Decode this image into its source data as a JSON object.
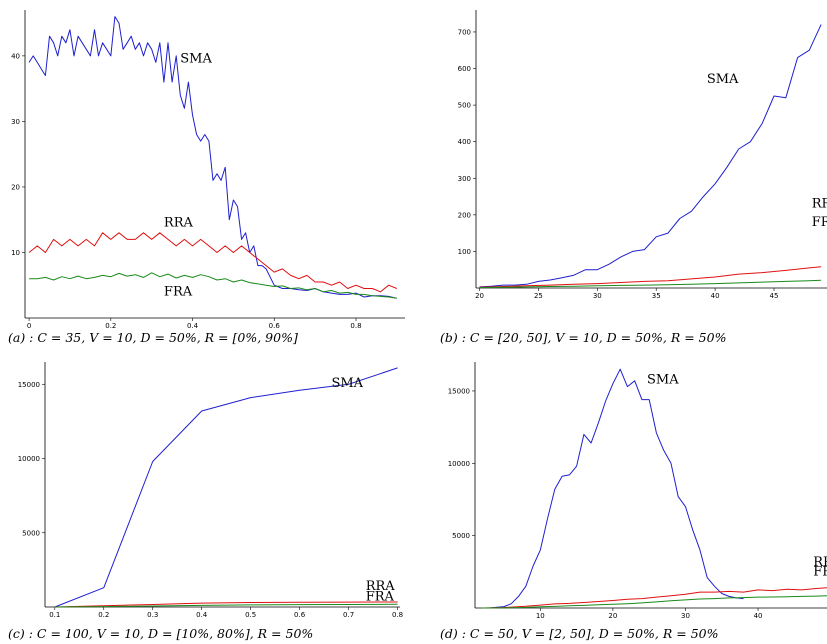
{
  "chart_data": [
    {
      "id": "a",
      "type": "line",
      "caption": "(a) : C = 35, V = 10, D = 50%, R = [0%, 90%]",
      "xlim": [
        -0.01,
        0.92
      ],
      "ylim": [
        0,
        47
      ],
      "xticks": [
        0,
        0.2,
        0.4,
        0.6,
        0.8
      ],
      "xticklabels": [
        "0",
        "0.2",
        "0.4",
        "0.6",
        "0.8"
      ],
      "yticks": [
        10,
        20,
        30,
        40
      ],
      "yticklabels": [
        "10",
        "20",
        "30",
        "40"
      ],
      "series": [
        {
          "name": "SMA",
          "color": "#1f1fd0",
          "label_at": [
            0.37,
            39
          ],
          "x": [
            0,
            0.01,
            0.02,
            0.03,
            0.04,
            0.05,
            0.06,
            0.07,
            0.08,
            0.09,
            0.1,
            0.11,
            0.12,
            0.13,
            0.14,
            0.15,
            0.16,
            0.17,
            0.18,
            0.19,
            0.2,
            0.21,
            0.22,
            0.23,
            0.24,
            0.25,
            0.26,
            0.27,
            0.28,
            0.29,
            0.3,
            0.31,
            0.32,
            0.33,
            0.34,
            0.35,
            0.36,
            0.37,
            0.38,
            0.39,
            0.4,
            0.41,
            0.42,
            0.43,
            0.44,
            0.45,
            0.46,
            0.47,
            0.48,
            0.49,
            0.5,
            0.51,
            0.52,
            0.53,
            0.54,
            0.55,
            0.56,
            0.57,
            0.58,
            0.6,
            0.62,
            0.64,
            0.66,
            0.68,
            0.7,
            0.72,
            0.74,
            0.76,
            0.78,
            0.8,
            0.82,
            0.84,
            0.86,
            0.88,
            0.9
          ],
          "y": [
            39,
            40,
            39,
            38,
            37,
            43,
            42,
            40,
            43,
            42,
            44,
            40,
            43,
            42,
            41,
            40,
            44,
            40,
            42,
            41,
            40,
            46,
            45,
            41,
            42,
            43,
            41,
            42,
            40,
            42,
            41,
            39,
            42,
            36,
            42,
            36,
            40,
            34,
            32,
            36,
            31,
            28,
            27,
            28,
            27,
            21,
            22,
            21,
            23,
            15,
            18,
            17,
            12,
            13,
            10,
            11,
            8,
            8,
            7.5,
            5,
            4.5,
            4.5,
            4.3,
            4.2,
            4.5,
            4,
            3.8,
            3.6,
            3.6,
            3.8,
            3.2,
            3.4,
            3.4,
            3.3,
            3
          ]
        },
        {
          "name": "RRA",
          "color": "#e01010",
          "label_at": [
            0.33,
            14
          ],
          "x": [
            0,
            0.02,
            0.04,
            0.06,
            0.08,
            0.1,
            0.12,
            0.14,
            0.16,
            0.18,
            0.2,
            0.22,
            0.24,
            0.26,
            0.28,
            0.3,
            0.32,
            0.34,
            0.36,
            0.38,
            0.4,
            0.42,
            0.44,
            0.46,
            0.48,
            0.5,
            0.52,
            0.54,
            0.56,
            0.58,
            0.6,
            0.62,
            0.64,
            0.66,
            0.68,
            0.7,
            0.72,
            0.74,
            0.76,
            0.78,
            0.8,
            0.82,
            0.84,
            0.86,
            0.88,
            0.9
          ],
          "y": [
            10,
            11,
            10,
            12,
            11,
            12,
            11,
            12,
            11,
            13,
            12,
            13,
            12,
            12,
            13,
            12,
            13,
            12,
            11,
            12,
            11,
            12,
            11,
            10,
            11,
            10,
            11,
            10,
            9,
            8,
            7,
            7.5,
            6.5,
            6,
            6.5,
            5.5,
            5.5,
            5,
            5.5,
            4.5,
            5,
            4.5,
            4.5,
            4,
            5,
            4.5
          ]
        },
        {
          "name": "FRA",
          "color": "#1a8a1a",
          "label_at": [
            0.33,
            3.4
          ],
          "x": [
            0,
            0.02,
            0.04,
            0.06,
            0.08,
            0.1,
            0.12,
            0.14,
            0.16,
            0.18,
            0.2,
            0.22,
            0.24,
            0.26,
            0.28,
            0.3,
            0.32,
            0.34,
            0.36,
            0.38,
            0.4,
            0.42,
            0.44,
            0.46,
            0.48,
            0.5,
            0.52,
            0.54,
            0.56,
            0.58,
            0.6,
            0.62,
            0.64,
            0.66,
            0.68,
            0.7,
            0.72,
            0.74,
            0.76,
            0.78,
            0.8,
            0.82,
            0.84,
            0.86,
            0.88,
            0.9
          ],
          "y": [
            6,
            6,
            6.2,
            5.8,
            6.3,
            6,
            6.4,
            6,
            6.2,
            6.5,
            6.3,
            6.8,
            6.4,
            6.6,
            6.2,
            6.9,
            6.3,
            6.7,
            6.1,
            6.5,
            6.2,
            6.6,
            6.3,
            5.8,
            6,
            5.5,
            5.8,
            5.4,
            5.2,
            5,
            4.8,
            4.9,
            4.5,
            4.6,
            4.3,
            4.5,
            4,
            4.2,
            3.8,
            3.9,
            3.6,
            3.6,
            3.4,
            3.3,
            3.2,
            3
          ]
        }
      ]
    },
    {
      "id": "b",
      "type": "line",
      "caption": "(b) : C = [20, 50], V = 10, D = 50%, R = 50%",
      "xlim": [
        19.7,
        49.5
      ],
      "ylim": [
        0,
        760
      ],
      "xticks": [
        20,
        25,
        30,
        35,
        40,
        45
      ],
      "xticklabels": [
        "20",
        "25",
        "30",
        "35",
        "40",
        "45"
      ],
      "yticks": [
        100,
        200,
        300,
        400,
        500,
        600,
        700
      ],
      "yticklabels": [
        "100",
        "200",
        "300",
        "400",
        "500",
        "600",
        "700"
      ],
      "series": [
        {
          "name": "SMA",
          "color": "#1f1fd0",
          "label_at": [
            39.3,
            560
          ],
          "x": [
            20,
            21,
            22,
            23,
            24,
            25,
            26,
            27,
            28,
            29,
            30,
            31,
            32,
            33,
            34,
            35,
            36,
            37,
            38,
            39,
            40,
            41,
            42,
            43,
            44,
            45,
            46,
            47,
            48,
            49
          ],
          "y": [
            3,
            5,
            8,
            8,
            10,
            18,
            22,
            28,
            35,
            50,
            50,
            65,
            85,
            100,
            105,
            140,
            150,
            190,
            210,
            250,
            285,
            330,
            380,
            400,
            450,
            525,
            520,
            630,
            650,
            720
          ]
        },
        {
          "name": "RRA",
          "color": "#e01010",
          "label_at": [
            48.2,
            220
          ],
          "x": [
            20,
            22,
            24,
            26,
            28,
            30,
            32,
            34,
            36,
            38,
            40,
            42,
            44,
            46,
            48,
            49
          ],
          "y": [
            2,
            4,
            6,
            8,
            10,
            12,
            15,
            18,
            20,
            25,
            30,
            38,
            42,
            48,
            55,
            58
          ]
        },
        {
          "name": "FRA",
          "color": "#1a8a1a",
          "label_at": [
            48.2,
            170
          ],
          "x": [
            20,
            22,
            24,
            26,
            28,
            30,
            32,
            34,
            36,
            38,
            40,
            42,
            44,
            46,
            48,
            49
          ],
          "y": [
            1,
            2,
            3,
            4,
            5,
            6,
            7,
            8,
            9,
            10,
            12,
            14,
            16,
            18,
            20,
            21
          ]
        }
      ]
    },
    {
      "id": "c",
      "type": "line",
      "caption": "(c) : C = 100, V = 10, D = [10%, 80%], R = 50%",
      "xlim": [
        0.08,
        0.805
      ],
      "ylim": [
        0,
        16500
      ],
      "xticks": [
        0.1,
        0.2,
        0.3,
        0.4,
        0.5,
        0.6,
        0.7,
        0.8
      ],
      "xticklabels": [
        "0.1",
        "0.2",
        "0.3",
        "0.4",
        "0.5",
        "0.6",
        "0.7",
        "0.8"
      ],
      "yticks": [
        5000,
        10000,
        15000
      ],
      "yticklabels": [
        "5000",
        "10000",
        "15000"
      ],
      "series": [
        {
          "name": "SMA",
          "color": "#1f1fd0",
          "label_at": [
            0.665,
            14800
          ],
          "x": [
            0.1,
            0.2,
            0.3,
            0.4,
            0.5,
            0.6,
            0.7,
            0.8
          ],
          "y": [
            0,
            1300,
            9800,
            13200,
            14100,
            14600,
            15000,
            16100
          ]
        },
        {
          "name": "RRA",
          "color": "#e01010",
          "label_at": [
            0.735,
            1150
          ],
          "x": [
            0.1,
            0.2,
            0.3,
            0.4,
            0.5,
            0.6,
            0.7,
            0.8
          ],
          "y": [
            0,
            80,
            170,
            260,
            300,
            320,
            330,
            340
          ]
        },
        {
          "name": "FRA",
          "color": "#1a8a1a",
          "label_at": [
            0.735,
            450
          ],
          "x": [
            0.1,
            0.2,
            0.3,
            0.4,
            0.5,
            0.6,
            0.7,
            0.8
          ],
          "y": [
            0,
            30,
            70,
            110,
            140,
            160,
            170,
            180
          ]
        }
      ]
    },
    {
      "id": "d",
      "type": "line",
      "caption": "(d) : C = 50, V = [2, 50], D = 50%, R = 50%",
      "xlim": [
        1,
        49.5
      ],
      "ylim": [
        0,
        17000
      ],
      "xticks": [
        10,
        20,
        30,
        40
      ],
      "xticklabels": [
        "10",
        "20",
        "30",
        "40"
      ],
      "yticks": [
        5000,
        10000,
        15000
      ],
      "yticklabels": [
        "5000",
        "10000",
        "15000"
      ],
      "series": [
        {
          "name": "SMA",
          "color": "#1f1fd0",
          "label_at": [
            24.7,
            15500
          ],
          "x": [
            2,
            3,
            4,
            5,
            6,
            7,
            8,
            9,
            10,
            11,
            12,
            13,
            14,
            15,
            16,
            17,
            18,
            19,
            20,
            21,
            22,
            23,
            24,
            25,
            26,
            27,
            28,
            29,
            30,
            31,
            32,
            33,
            34,
            35,
            36,
            37,
            38
          ],
          "y": [
            0,
            0,
            50,
            100,
            300,
            800,
            1500,
            2900,
            4000,
            6200,
            8200,
            9100,
            9200,
            9800,
            12000,
            11400,
            12800,
            14300,
            15500,
            16500,
            15300,
            15700,
            14400,
            14400,
            12100,
            10900,
            10000,
            7700,
            7000,
            5400,
            4000,
            2100,
            1500,
            1000,
            800,
            700,
            650
          ]
        },
        {
          "name": "RRA",
          "color": "#e01010",
          "label_at": [
            47.6,
            2900
          ],
          "x": [
            2,
            4,
            6,
            8,
            10,
            12,
            14,
            16,
            18,
            20,
            22,
            24,
            26,
            28,
            30,
            32,
            34,
            36,
            38,
            40,
            42,
            44,
            46,
            48,
            49.5
          ],
          "y": [
            0,
            20,
            60,
            120,
            200,
            280,
            320,
            380,
            450,
            520,
            600,
            650,
            750,
            850,
            950,
            1100,
            1100,
            1150,
            1100,
            1250,
            1200,
            1300,
            1250,
            1350,
            1400
          ]
        },
        {
          "name": "FRA",
          "color": "#1a8a1a",
          "label_at": [
            47.6,
            2250
          ],
          "x": [
            2,
            4,
            6,
            8,
            10,
            12,
            14,
            16,
            18,
            20,
            22,
            24,
            26,
            28,
            30,
            32,
            34,
            36,
            38,
            40,
            42,
            44,
            46,
            48,
            49.5
          ],
          "y": [
            0,
            10,
            20,
            40,
            80,
            110,
            150,
            180,
            220,
            260,
            300,
            350,
            420,
            500,
            560,
            620,
            650,
            700,
            720,
            750,
            760,
            780,
            800,
            820,
            850
          ]
        }
      ]
    }
  ]
}
